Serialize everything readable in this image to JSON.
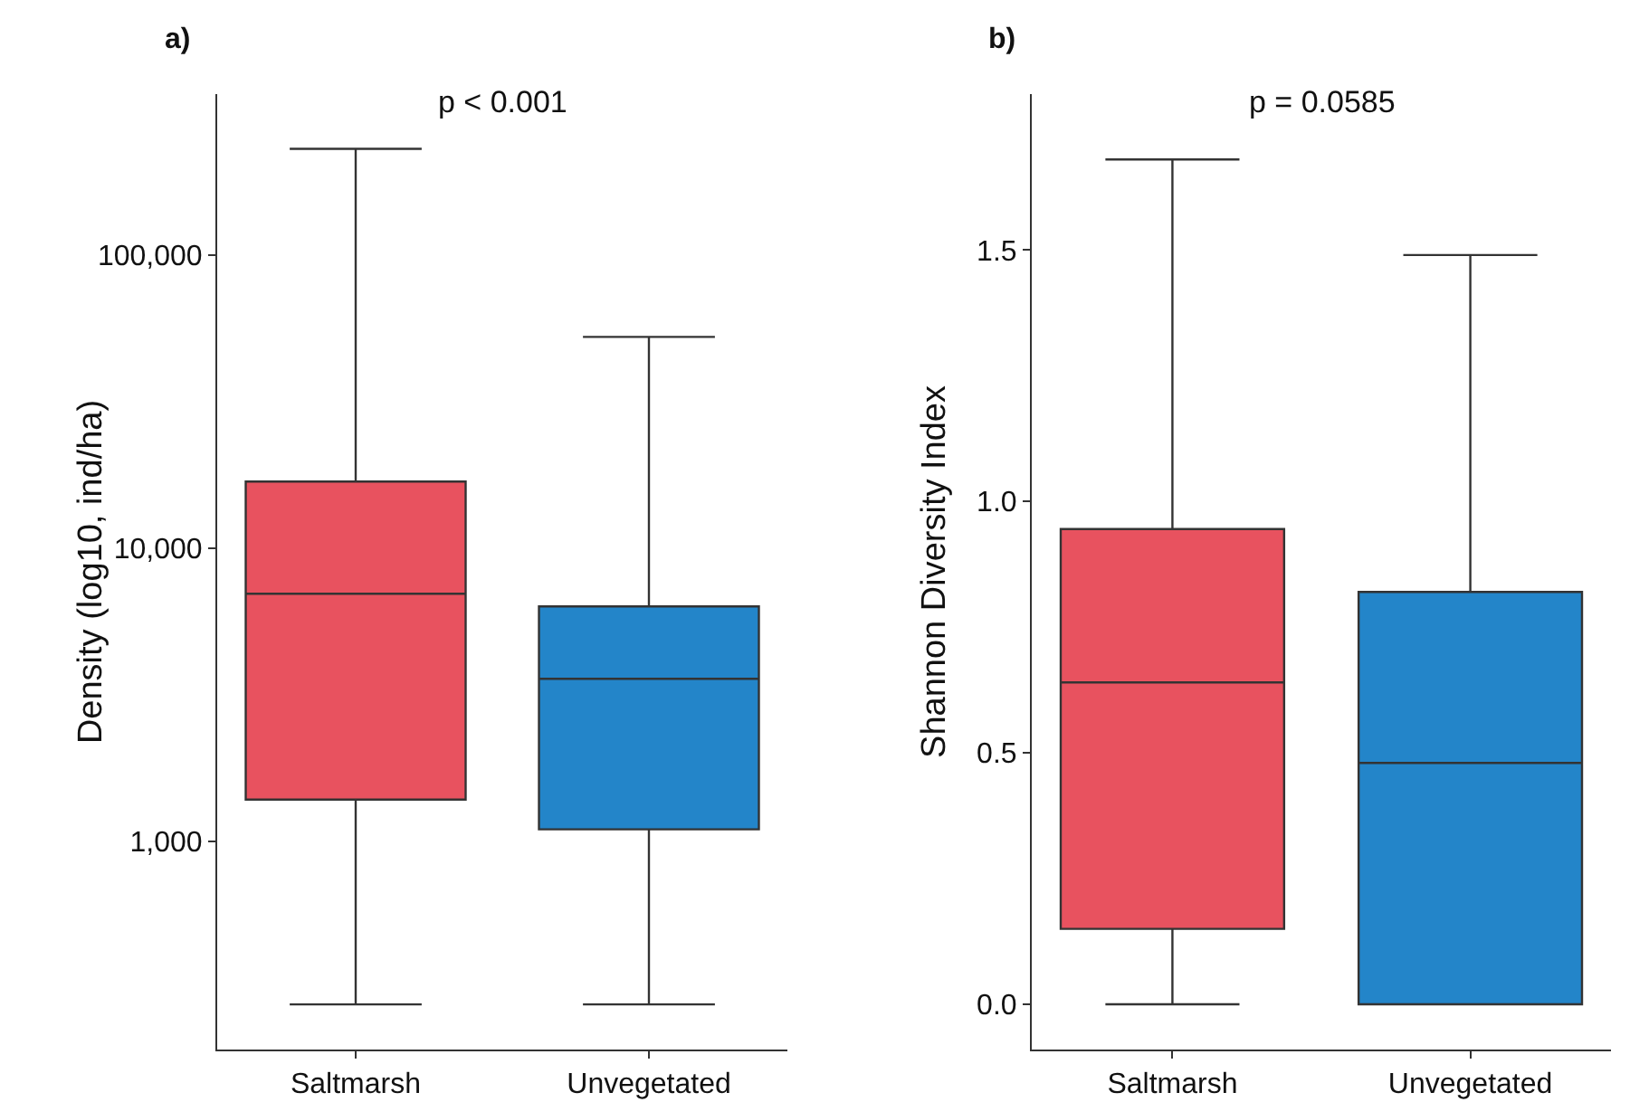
{
  "chart_data": [
    {
      "type": "box",
      "title": "a)",
      "ylabel": "Density (log10, ind/ha)",
      "categories": [
        "Saltmarsh",
        "Unvegetated"
      ],
      "colors": [
        "#e8525f",
        "#2385c9"
      ],
      "boxes": [
        {
          "low": 278,
          "q1": 1390,
          "median": 7000,
          "q3": 16900,
          "high": 231000
        },
        {
          "low": 278,
          "q1": 1100,
          "median": 3590,
          "q3": 6340,
          "high": 52700
        }
      ],
      "log": "y",
      "ylim": [
        195,
        355000
      ],
      "yticks": [
        {
          "value": 1000,
          "label": "1,000"
        },
        {
          "value": 10000,
          "label": "10,000"
        },
        {
          "value": 100000,
          "label": "100,000"
        }
      ],
      "annotations": [
        "p < 0.001"
      ],
      "grid": false,
      "legend": false
    },
    {
      "type": "box",
      "title": "b)",
      "ylabel": "Shannon Diversity Index",
      "categories": [
        "Saltmarsh",
        "Unvegetated"
      ],
      "colors": [
        "#e8525f",
        "#2385c9"
      ],
      "boxes": [
        {
          "low": 0,
          "q1": 0.15,
          "median": 0.64,
          "q3": 0.945,
          "high": 1.68
        },
        {
          "low": 0,
          "q1": 0,
          "median": 0.48,
          "q3": 0.82,
          "high": 1.49
        }
      ],
      "ylim": [
        -0.09,
        1.81
      ],
      "yticks": [
        {
          "value": 0,
          "label": "0.0"
        },
        {
          "value": 0.5,
          "label": "0.5"
        },
        {
          "value": 1,
          "label": "1.0"
        },
        {
          "value": 1.5,
          "label": "1.5"
        }
      ],
      "annotations": [
        "p = 0.0585"
      ],
      "grid": false,
      "legend": false
    }
  ]
}
